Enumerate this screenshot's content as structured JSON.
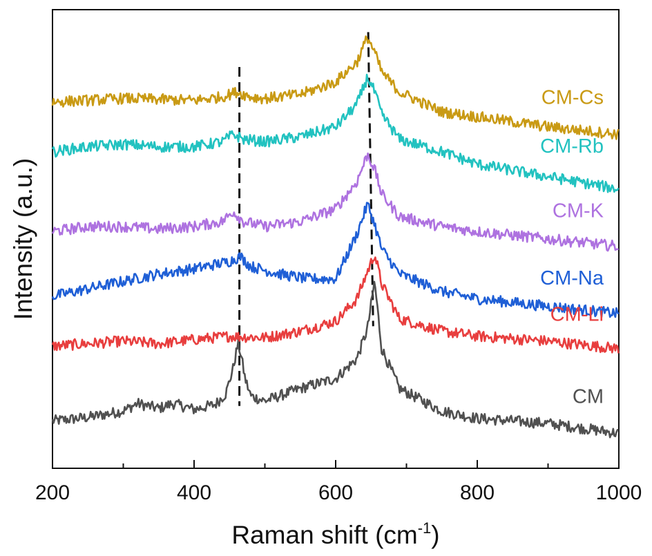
{
  "chart_data": {
    "type": "line",
    "xlabel": "Raman shift (cm",
    "xlabel_sup": "-1",
    "xlabel_close": ")",
    "ylabel": "Intensity (a.u.)",
    "xlim": [
      200,
      1000
    ],
    "ylim": [
      0,
      9.2
    ],
    "xticks": [
      200,
      400,
      600,
      800,
      1000
    ],
    "grid": false,
    "legend": "inline labels at right",
    "yticks_shown": false,
    "reference_lines": [
      {
        "x_top": 464,
        "x_bottom": 464,
        "y_top": 8.05,
        "y_bottom": 1.25
      },
      {
        "x_top": 646,
        "x_bottom": 653,
        "y_top": 8.75,
        "y_bottom": 2.85
      }
    ],
    "series": [
      {
        "name": "CM",
        "color": "#505050",
        "x": [
          200,
          250,
          300,
          320,
          350,
          370,
          400,
          430,
          445,
          455,
          462,
          466,
          472,
          480,
          500,
          550,
          600,
          630,
          645,
          655,
          665,
          690,
          750,
          800,
          900,
          1000
        ],
        "y": [
          0.95,
          1.02,
          1.15,
          1.3,
          1.2,
          1.3,
          1.18,
          1.28,
          1.5,
          2.0,
          2.5,
          2.3,
          1.8,
          1.45,
          1.35,
          1.6,
          1.8,
          2.2,
          2.8,
          3.75,
          2.4,
          1.6,
          1.15,
          1.0,
          0.9,
          0.7
        ]
      },
      {
        "name": "CM-Li",
        "color": "#e83e3e",
        "x": [
          200,
          250,
          300,
          350,
          400,
          450,
          500,
          550,
          600,
          630,
          645,
          655,
          665,
          690,
          750,
          800,
          900,
          1000
        ],
        "y": [
          2.45,
          2.5,
          2.55,
          2.5,
          2.58,
          2.65,
          2.62,
          2.75,
          2.95,
          3.4,
          3.95,
          4.3,
          3.7,
          3.0,
          2.75,
          2.65,
          2.55,
          2.4
        ]
      },
      {
        "name": "CM-Na",
        "color": "#1f5fd6",
        "x": [
          200,
          250,
          300,
          350,
          400,
          450,
          465,
          480,
          520,
          560,
          600,
          630,
          645,
          655,
          665,
          690,
          750,
          800,
          900,
          1000
        ],
        "y": [
          3.45,
          3.6,
          3.75,
          3.9,
          4.0,
          4.15,
          4.25,
          4.05,
          3.9,
          3.8,
          3.8,
          4.7,
          5.3,
          4.9,
          4.4,
          3.9,
          3.55,
          3.4,
          3.25,
          3.1
        ]
      },
      {
        "name": "CM-K",
        "color": "#ae72e0",
        "x": [
          200,
          250,
          300,
          350,
          400,
          440,
          455,
          470,
          500,
          550,
          600,
          630,
          645,
          655,
          665,
          690,
          750,
          800,
          900,
          1000
        ],
        "y": [
          4.75,
          4.85,
          4.85,
          4.8,
          4.85,
          4.95,
          5.15,
          4.95,
          4.85,
          4.95,
          5.2,
          5.75,
          6.3,
          6.0,
          5.5,
          5.05,
          4.85,
          4.75,
          4.6,
          4.45
        ]
      },
      {
        "name": "CM-Rb",
        "color": "#22c2c0",
        "x": [
          200,
          250,
          300,
          350,
          400,
          440,
          455,
          470,
          500,
          550,
          600,
          630,
          645,
          655,
          665,
          690,
          750,
          800,
          900,
          1000
        ],
        "y": [
          6.35,
          6.45,
          6.5,
          6.45,
          6.45,
          6.55,
          6.7,
          6.6,
          6.55,
          6.65,
          6.85,
          7.3,
          7.85,
          7.55,
          7.1,
          6.6,
          6.35,
          6.1,
          5.85,
          5.6
        ]
      },
      {
        "name": "CM-Cs",
        "color": "#c99a14",
        "x": [
          200,
          250,
          300,
          350,
          400,
          440,
          460,
          480,
          500,
          550,
          600,
          630,
          645,
          655,
          665,
          690,
          750,
          800,
          900,
          1000
        ],
        "y": [
          7.35,
          7.38,
          7.42,
          7.4,
          7.38,
          7.45,
          7.55,
          7.45,
          7.42,
          7.5,
          7.75,
          8.15,
          8.65,
          8.35,
          7.95,
          7.55,
          7.15,
          7.05,
          6.85,
          6.7
        ]
      }
    ]
  }
}
